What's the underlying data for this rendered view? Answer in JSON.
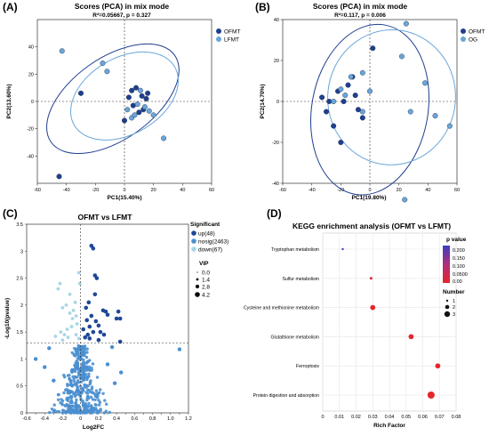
{
  "panels": {
    "a": {
      "letter": "(A)",
      "title": "Scores (PCA) in mix mode",
      "subtitle": "R²=0.05667, p = 0.327",
      "xlabel": "PC1(15.40%)",
      "ylabel": "PC2(13.60%)",
      "legend": [
        "OFMT",
        "LFMT"
      ]
    },
    "b": {
      "letter": "(B)",
      "title": "Scores (PCA) in mix mode",
      "subtitle": "R²=0.117, p = 0.006",
      "xlabel": "PC1(19.80%)",
      "ylabel": "PC2(14.70%)",
      "legend": [
        "OFMT",
        "OG"
      ]
    },
    "c": {
      "letter": "(C)",
      "title": "OFMT vs LFMT",
      "xlabel": "Log2FC",
      "ylabel": "-Log10(pvalue)",
      "legend_title": "Significant",
      "legend": [
        "up(48)",
        "nosig(2463)",
        "down(67)"
      ],
      "vip_title": "VIP",
      "vip": [
        "0.0",
        "1.4",
        "2.8",
        "4.2"
      ]
    },
    "d": {
      "letter": "(D)",
      "title": "KEGG enrichment analysis (OFMT vs LFMT)",
      "xlabel": "Rich Factor",
      "color_title": "p value",
      "color_ticks": [
        "0.200",
        "0.150",
        "0.100",
        "0.0500",
        "0.00"
      ],
      "size_title": "Number",
      "size_ticks": [
        "1",
        "2",
        "3"
      ]
    }
  },
  "colors": {
    "ofmt": "#1f3f8f",
    "lfmt": "#6aa6d8",
    "nosig": "#4a8fd0",
    "down": "#a8d6e6",
    "up": "#1f4896",
    "sig_red": "#e0242b"
  },
  "chart_data": [
    {
      "type": "scatter",
      "panel": "A",
      "xlim": [
        -60,
        60
      ],
      "ylim": [
        -60,
        60
      ],
      "xticks": [
        -60,
        -40,
        -20,
        0,
        20,
        40,
        60
      ],
      "yticks": [
        -40,
        -20,
        0,
        20,
        40
      ],
      "series": [
        {
          "name": "OFMT",
          "points": [
            [
              -30,
              6
            ],
            [
              0,
              -14
            ],
            [
              3,
              3
            ],
            [
              5,
              8
            ],
            [
              6,
              -3
            ],
            [
              8,
              10
            ],
            [
              10,
              -8
            ],
            [
              12,
              4
            ],
            [
              13,
              -6
            ],
            [
              15,
              2
            ],
            [
              16,
              6
            ],
            [
              -45,
              -55
            ]
          ]
        },
        {
          "name": "LFMT",
          "points": [
            [
              -43,
              37
            ],
            [
              -15,
              28
            ],
            [
              -12,
              22
            ],
            [
              2,
              -6
            ],
            [
              5,
              -12
            ],
            [
              7,
              -10
            ],
            [
              9,
              -2
            ],
            [
              11,
              8
            ],
            [
              14,
              -4
            ],
            [
              17,
              -7
            ],
            [
              20,
              -10
            ],
            [
              27,
              -27
            ]
          ]
        }
      ]
    },
    {
      "type": "scatter",
      "panel": "B",
      "xlim": [
        -60,
        60
      ],
      "ylim": [
        -40,
        40
      ],
      "xticks": [
        -60,
        -40,
        -20,
        0,
        20,
        40,
        60
      ],
      "yticks": [
        -40,
        -20,
        0,
        20,
        40
      ],
      "series": [
        {
          "name": "OFMT",
          "points": [
            [
              -33,
              2
            ],
            [
              -30,
              -5
            ],
            [
              -25,
              -12
            ],
            [
              -22,
              5
            ],
            [
              -20,
              -20
            ],
            [
              -18,
              0
            ],
            [
              -15,
              8
            ],
            [
              -12,
              12
            ],
            [
              -10,
              3
            ],
            [
              -8,
              -4
            ],
            [
              -5,
              -8
            ],
            [
              2,
              26
            ],
            [
              -28,
              0
            ]
          ]
        },
        {
          "name": "OG",
          "points": [
            [
              -25,
              0
            ],
            [
              -20,
              6
            ],
            [
              -17,
              3
            ],
            [
              -13,
              12
            ],
            [
              -5,
              14
            ],
            [
              22,
              22
            ],
            [
              25,
              38
            ],
            [
              28,
              -5
            ],
            [
              38,
              9
            ],
            [
              45,
              -7
            ],
            [
              55,
              -12
            ],
            [
              -5,
              -5
            ],
            [
              0,
              5
            ],
            [
              24,
              -48
            ]
          ]
        }
      ]
    },
    {
      "type": "scatter",
      "panel": "C",
      "xlim": [
        -0.6,
        1.2
      ],
      "ylim": [
        0,
        3.5
      ],
      "xticks": [
        -0.6,
        -0.5,
        -0.4,
        -0.3,
        -0.2,
        -0.1,
        0,
        0.1,
        0.2,
        0.3,
        0.4,
        0.5,
        0.6,
        0.7,
        0.8,
        0.9,
        1.0,
        1.1,
        1.2
      ],
      "yticks": [
        0,
        0.5,
        1,
        1.5,
        2,
        2.5,
        3,
        3.5
      ],
      "threshold": 1.3,
      "up": [
        [
          0.12,
          3.1
        ],
        [
          0.14,
          3.05
        ],
        [
          0.16,
          2.55
        ],
        [
          0.18,
          2.5
        ],
        [
          0.25,
          1.9
        ],
        [
          0.28,
          1.88
        ],
        [
          0.3,
          1.82
        ],
        [
          0.42,
          1.88
        ],
        [
          0.4,
          1.75
        ],
        [
          0.44,
          1.75
        ],
        [
          0.06,
          1.95
        ],
        [
          0.12,
          1.8
        ],
        [
          0.17,
          1.7
        ],
        [
          0.2,
          1.62
        ],
        [
          0.1,
          1.6
        ],
        [
          0.14,
          1.5
        ],
        [
          0.08,
          1.45
        ],
        [
          0.05,
          1.4
        ],
        [
          0.1,
          1.38
        ],
        [
          0.2,
          1.35
        ],
        [
          0.44,
          1.32
        ],
        [
          0.16,
          2.2
        ],
        [
          0.09,
          2.05
        ],
        [
          0.22,
          1.5
        ],
        [
          0.26,
          1.45
        ],
        [
          0.03,
          1.55
        ],
        [
          0.07,
          1.72
        ]
      ],
      "down": [
        [
          -0.25,
          2.3
        ],
        [
          -0.23,
          2.4
        ],
        [
          -0.2,
          1.95
        ],
        [
          -0.16,
          2.0
        ],
        [
          -0.12,
          1.85
        ],
        [
          -0.08,
          1.9
        ],
        [
          -0.05,
          1.8
        ],
        [
          -0.1,
          1.6
        ],
        [
          -0.15,
          1.55
        ],
        [
          -0.18,
          1.45
        ],
        [
          -0.22,
          1.5
        ],
        [
          -0.05,
          1.45
        ],
        [
          -0.02,
          1.38
        ],
        [
          -0.28,
          1.42
        ],
        [
          -0.12,
          2.2
        ],
        [
          -0.06,
          2.05
        ],
        [
          -0.04,
          1.65
        ],
        [
          -0.09,
          1.75
        ],
        [
          -0.14,
          1.4
        ],
        [
          -0.2,
          1.35
        ],
        [
          -0.01,
          2.4
        ],
        [
          -0.02,
          2.6
        ]
      ],
      "nosig_outliers": [
        [
          -0.5,
          1.0
        ],
        [
          1.1,
          1.18
        ],
        [
          -0.35,
          1.2
        ],
        [
          0.35,
          1.22
        ],
        [
          0.3,
          0.9
        ],
        [
          -0.4,
          0.85
        ],
        [
          0.45,
          0.75
        ],
        [
          0.38,
          0.55
        ],
        [
          -0.3,
          0.6
        ]
      ],
      "legend": [
        "up(48)",
        "nosig(2463)",
        "down(67)"
      ]
    },
    {
      "type": "scatter",
      "panel": "D",
      "title": "KEGG enrichment analysis (OFMT vs LFMT)",
      "xlabel": "Rich Factor",
      "xlim": [
        0,
        0.08
      ],
      "xticks": [
        "0",
        "0.01",
        "0.02",
        "0.03",
        "0.04",
        "0.05",
        "0.06",
        "0.07",
        "0.08"
      ],
      "categories": [
        "Tryptophan metabolism",
        "Sulfur metabolism",
        "Cysteine and methionine metabolism",
        "Glutathione metabolism",
        "Ferroptosis",
        "Protein digestion and absorption"
      ],
      "rich_factor": [
        0.012,
        0.029,
        0.03,
        0.053,
        0.069,
        0.065
      ],
      "number": [
        1,
        1,
        2,
        2,
        2,
        3
      ],
      "pvalue": [
        0.2,
        0.0,
        0.0,
        0.0,
        0.0,
        0.0
      ]
    }
  ]
}
